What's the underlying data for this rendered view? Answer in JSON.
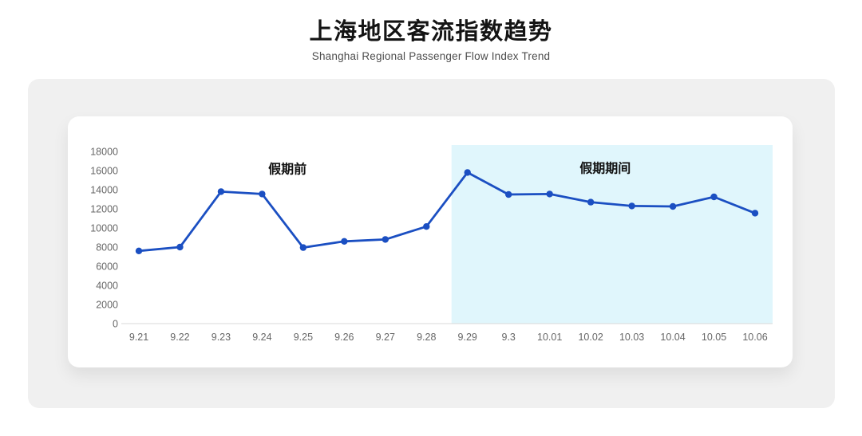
{
  "header": {
    "title": "上海地区客流指数趋势",
    "subtitle": "Shanghai Regional Passenger Flow Index Trend"
  },
  "chart_data": {
    "type": "line",
    "title": "上海地区客流指数趋势",
    "subtitle": "Shanghai Regional Passenger Flow Index Trend",
    "categories": [
      "9.21",
      "9.22",
      "9.23",
      "9.24",
      "9.25",
      "9.26",
      "9.27",
      "9.28",
      "9.29",
      "9.3",
      "10.01",
      "10.02",
      "10.03",
      "10.04",
      "10.05",
      "10.06"
    ],
    "series": [
      {
        "name": "客流指数",
        "color": "#1b4fc2",
        "values": [
          7600,
          8000,
          13800,
          13550,
          7950,
          8600,
          8800,
          10150,
          15800,
          13500,
          13550,
          12700,
          12300,
          12250,
          13250,
          11550
        ]
      }
    ],
    "ylim": [
      0,
      18000
    ],
    "yticks": [
      0,
      2000,
      4000,
      6000,
      8000,
      10000,
      12000,
      14000,
      16000,
      18000
    ],
    "grid": false,
    "legend_position": "none",
    "annotations": [
      {
        "text": "假期前",
        "x_fraction": 0.255,
        "y_value": 16150
      },
      {
        "text": "假期期间",
        "x_fraction": 0.743,
        "y_value": 16250
      }
    ],
    "highlight_region": {
      "label": "假期期间",
      "color": "#e0f6fc",
      "start_fraction": 0.507,
      "end_fraction": 1.0
    },
    "axis_line_color": "#d9d9d9",
    "tick_label_color": "#666666",
    "annotation_color": "#111111"
  }
}
